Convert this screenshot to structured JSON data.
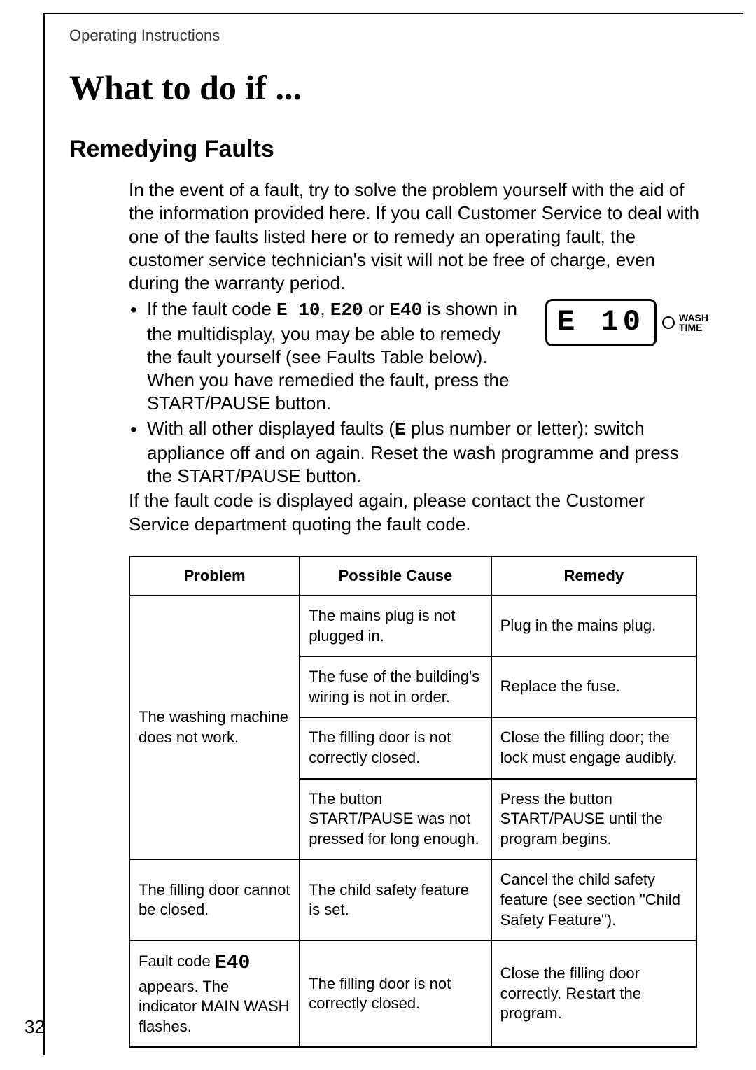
{
  "header": "Operating Instructions",
  "title": "What to do if ...",
  "section": "Remedying Faults",
  "intro": "In the event of a fault, try to solve the problem yourself with the aid of the information provided here. If you call Customer Service to deal with one of the faults listed here or to remedy an operating fault, the customer service technician's visit will not be free of charge, even during the warranty period.",
  "bullet1_prefix": "If the fault code ",
  "bullet1_code1": "E 10",
  "bullet1_sep1": ", ",
  "bullet1_code2": "E20",
  "bullet1_sep2": " or ",
  "bullet1_code3": "E40",
  "bullet1_rest": " is shown in the multidisplay, you may be able to remedy the fault yourself (see Faults Table below). When you have remedied the fault, press the START/PAUSE button.",
  "bullet2_prefix": "With all other displayed faults (",
  "bullet2_code": "E",
  "bullet2_rest": " plus number or letter): switch appliance off and on again. Reset the wash programme and press the START/PAUSE button.",
  "closing": "If the fault code is displayed again, please contact the Customer Service department quoting the fault code.",
  "display": {
    "lcd": "E 10",
    "wash_line1": "WASH",
    "wash_line2": "TIME"
  },
  "table": {
    "headers": [
      "Problem",
      "Possible Cause",
      "Remedy"
    ],
    "rows": [
      {
        "problem": "The washing machine does not work.",
        "rowspan": 4,
        "cause": "The mains plug is not plugged in.",
        "remedy": "Plug in the mains plug."
      },
      {
        "cause": "The fuse of the building's wiring is not in order.",
        "remedy": "Replace the fuse."
      },
      {
        "cause": "The filling door is not correctly closed.",
        "remedy": "Close the filling door; the lock must engage audibly."
      },
      {
        "cause": "The button START/PAUSE was not pressed for long enough.",
        "remedy": "Press the button START/PAUSE until the program begins."
      },
      {
        "problem": "The filling door cannot be closed.",
        "rowspan": 1,
        "cause": "The child safety feature is set.",
        "remedy": "Cancel the child safety feature (see section \"Child Safety Feature\")."
      },
      {
        "problem_prefix": "Fault code ",
        "problem_code": "E40",
        "problem_suffix": " appears. The indicator MAIN WASH flashes.",
        "rowspan": 1,
        "cause": "The filling door is not correctly closed.",
        "remedy": "Close the filling door correctly. Restart the program."
      }
    ]
  },
  "page_number": "32"
}
